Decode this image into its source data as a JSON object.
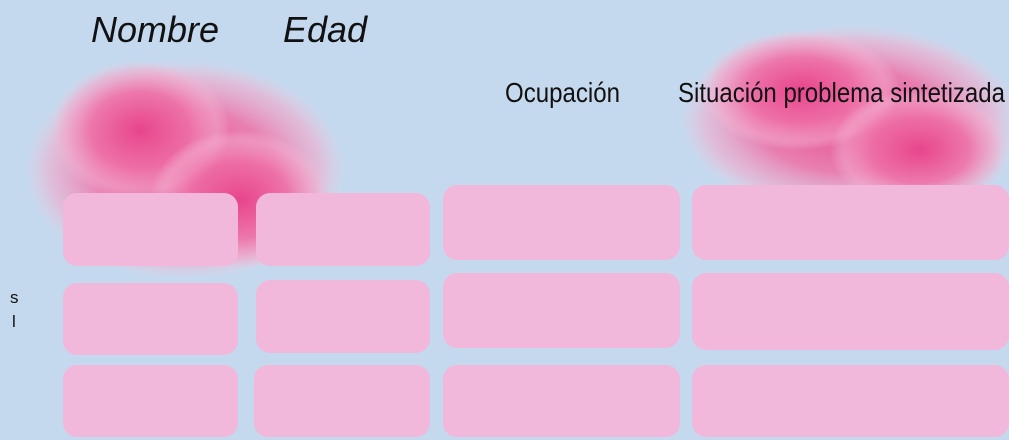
{
  "table": {
    "columns": [
      "Nombre",
      "Edad",
      "Ocupación",
      "Situación problema sintetizada"
    ]
  },
  "side_text": [
    "s",
    "l"
  ]
}
